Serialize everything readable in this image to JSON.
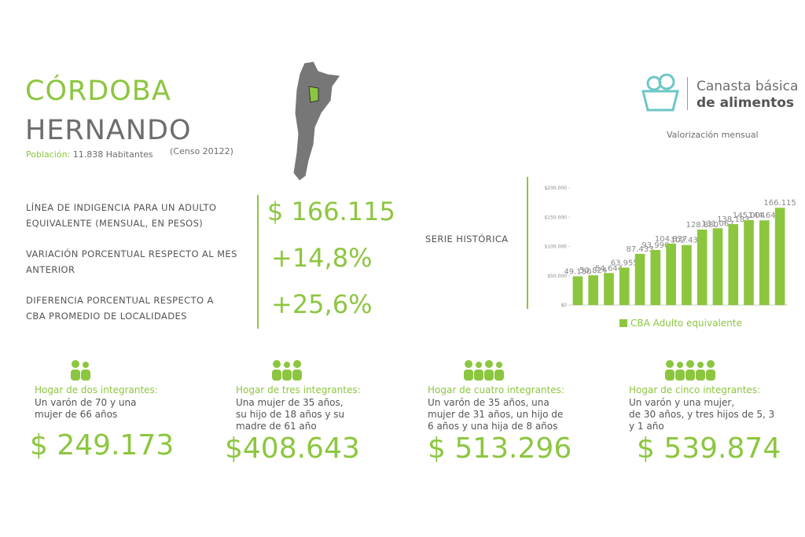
{
  "header": {
    "province": "CÓRDOBA",
    "locality": "HERNANDO",
    "population_label": "Población:",
    "population": "11.838 Habitantes",
    "census": "(Censo 20122)"
  },
  "logo": {
    "line1": "Canasta básica",
    "line2": "de alimentos",
    "subtitle": "Valorización mensual"
  },
  "indicators": [
    {
      "label": [
        "LÍNEA DE INDIGENCIA PARA UN ADULTO",
        "EQUIVALENTE (MENSUAL, EN PESOS)"
      ],
      "value": "$ 166.115"
    },
    {
      "label": [
        "VARIACIÓN PORCENTUAL RESPECTO AL MES",
        "ANTERIOR"
      ],
      "value": "+14,8%"
    },
    {
      "label": [
        "DIFERENCIA PORCENTUAL RESPECTO A",
        "CBA PROMEDIO DE LOCALIDADES"
      ],
      "value": "+25,6%"
    }
  ],
  "chart_label": "SERIE HISTÓRICA",
  "chart_data": {
    "type": "bar",
    "categories": [
      null,
      null,
      null,
      null,
      null,
      null,
      null,
      null,
      null,
      null,
      null,
      null,
      null,
      null
    ],
    "series": [
      {
        "name": "CBA Adulto equivalente",
        "color": "#8cc63f",
        "values": [
          49150,
          50824,
          54644,
          63955,
          87433,
          93990,
          104837,
          102435,
          128880,
          131062,
          138183,
          145004,
          144644,
          166115
        ],
        "value_labels": [
          "49.150",
          "50.824",
          "54.644",
          "63.955",
          "87.433",
          "93.990",
          "104.837",
          "102.435",
          "128.880",
          "131.062",
          "138.183",
          "145.004",
          "144.644",
          "166.115"
        ]
      }
    ],
    "ylim": [
      0,
      200000
    ],
    "yticks": [
      {
        "value": 0,
        "label": "$0"
      },
      {
        "value": 50000,
        "label": "$50.000"
      },
      {
        "value": 100000,
        "label": "$100.000"
      },
      {
        "value": 150000,
        "label": "$150.000"
      },
      {
        "value": 200000,
        "label": "$200.000"
      }
    ],
    "legend": "bottom"
  },
  "households": [
    {
      "title": "Hogar de dos integrantes:",
      "description": [
        "Un varón de 70 y una",
        "mujer de 66 años"
      ],
      "value": "$ 249.173"
    },
    {
      "title": "Hogar de tres integrantes:",
      "description": [
        "Una mujer de 35 años,",
        "su hijo de 18 años y su",
        "madre de 61 año"
      ],
      "value": "$408.643"
    },
    {
      "title": "Hogar de cuatro integrantes:",
      "description": [
        "Un varón de 35 años, una",
        "mujer de 31 años, un hijo de",
        "6 años y una hija de 8 años"
      ],
      "value": "$ 513.296"
    },
    {
      "title": "Hogar de cinco integrantes:",
      "description": [
        "Un varón y una mujer,",
        "de 30 años, y tres hijos de 5, 3",
        "y 1 año"
      ],
      "value": "$ 539.874"
    }
  ]
}
